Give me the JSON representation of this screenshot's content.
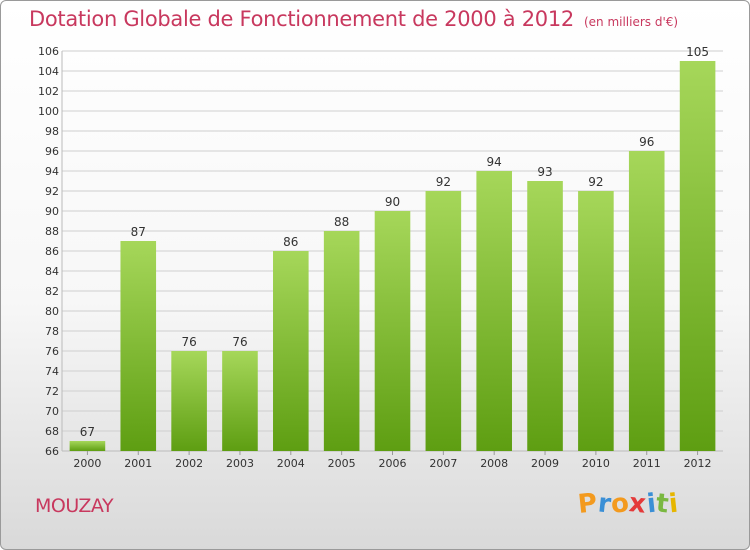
{
  "title": "Dotation Globale de Fonctionnement de 2000 à 2012",
  "subtitle": "(en milliers d'€)",
  "commune": "MOUZAY",
  "logo": {
    "letters": [
      "P",
      "r",
      "o",
      "x",
      "i",
      "t",
      "i"
    ],
    "colors": [
      "#f39a1e",
      "#3a8fd6",
      "#f39a1e",
      "#e43a3a",
      "#3a8fd6",
      "#7ab840",
      "#e6b600"
    ]
  },
  "colors": {
    "title": "#c8385e",
    "bar_light": "#a6d75a",
    "bar_dark": "#5e9e12",
    "grid": "#cfcfcf"
  },
  "chart_data": {
    "type": "bar",
    "categories": [
      "2000",
      "2001",
      "2002",
      "2003",
      "2004",
      "2005",
      "2006",
      "2007",
      "2008",
      "2009",
      "2010",
      "2011",
      "2012"
    ],
    "values": [
      67,
      87,
      76,
      76,
      86,
      88,
      90,
      92,
      94,
      93,
      92,
      96,
      105
    ],
    "ylim": [
      66,
      106
    ],
    "yticks": [
      66,
      68,
      70,
      72,
      74,
      76,
      78,
      80,
      82,
      84,
      86,
      88,
      90,
      92,
      94,
      96,
      98,
      100,
      102,
      104,
      106
    ],
    "grid": true,
    "data_labels": true
  }
}
